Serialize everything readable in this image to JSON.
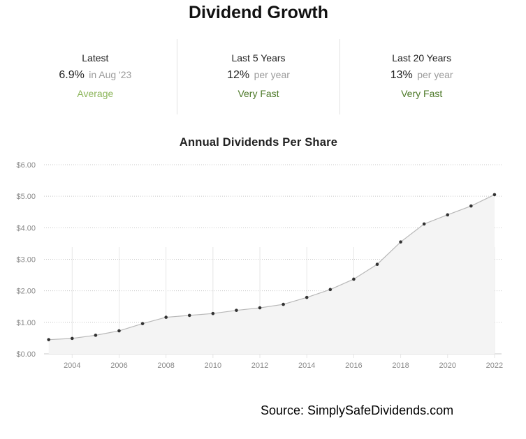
{
  "header": {
    "title": "Dividend Growth"
  },
  "stats": [
    {
      "label": "Latest",
      "value": "6.9%",
      "suffix": "in Aug '23",
      "rating": "Average",
      "rating_color": "#8db65c"
    },
    {
      "label": "Last 5 Years",
      "value": "12%",
      "suffix": "per year",
      "rating": "Very Fast",
      "rating_color": "#4e7a2a"
    },
    {
      "label": "Last 20 Years",
      "value": "13%",
      "suffix": "per year",
      "rating": "Very Fast",
      "rating_color": "#4e7a2a"
    }
  ],
  "chart_data": {
    "type": "area",
    "title": "Annual Dividends Per Share",
    "xlabel": "",
    "ylabel": "",
    "x": [
      2003,
      2004,
      2005,
      2006,
      2007,
      2008,
      2009,
      2010,
      2011,
      2012,
      2013,
      2014,
      2015,
      2016,
      2017,
      2018,
      2019,
      2020,
      2021,
      2022
    ],
    "series": [
      {
        "values": [
          0.45,
          0.49,
          0.59,
          0.73,
          0.96,
          1.16,
          1.22,
          1.28,
          1.38,
          1.46,
          1.57,
          1.79,
          2.04,
          2.37,
          2.84,
          3.55,
          4.12,
          4.41,
          4.69,
          5.05
        ]
      }
    ],
    "ylim": [
      0,
      6
    ],
    "y_ticks": [
      "$0.00",
      "$1.00",
      "$2.00",
      "$3.00",
      "$4.00",
      "$5.00",
      "$6.00"
    ],
    "x_ticks": [
      "2004",
      "2006",
      "2008",
      "2010",
      "2012",
      "2014",
      "2016",
      "2018",
      "2020",
      "2022"
    ],
    "grid": true,
    "line_color": "#b8b8b8",
    "fill_color": "#f4f4f4",
    "point_color": "#333333"
  },
  "footer": {
    "source": "Source: SimplySafeDividends.com"
  }
}
